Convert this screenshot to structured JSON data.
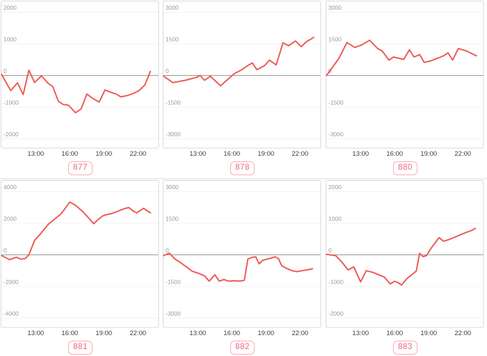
{
  "page": {
    "background": "#ffffff"
  },
  "colors": {
    "line": "#ee5a55",
    "zero_line": "#999999",
    "grid": "#f3f3f3",
    "chart_border": "#d9d9d9",
    "y_tick_text": "#9a9a9a",
    "x_tick_text": "#3c3c3c",
    "badge_border": "#fbaab9",
    "badge_text": "#f2607c",
    "row_divider": "#ededed"
  },
  "x_axis": {
    "tick_hours": [
      13,
      16,
      19,
      22
    ],
    "tick_labels": [
      "13:00",
      "16:00",
      "19:00",
      "22:00"
    ]
  },
  "chart_data": [
    {
      "type": "line",
      "label": "877",
      "xlabel": "",
      "ylabel": "",
      "grid": true,
      "ylim": [
        -2000,
        2000
      ],
      "yticks": [
        2000,
        1000,
        0,
        -1000,
        -2000
      ],
      "x": [
        10.0,
        10.8,
        11.4,
        11.9,
        12.4,
        12.9,
        13.5,
        14.1,
        14.5,
        15.0,
        15.4,
        15.9,
        16.5,
        17.0,
        17.5,
        18.1,
        18.6,
        19.1,
        19.6,
        20.1,
        20.5,
        21.1,
        21.6,
        22.1,
        22.6,
        23.1
      ],
      "y": [
        30,
        -480,
        -235,
        -605,
        165,
        -225,
        -10,
        -250,
        -350,
        -820,
        -915,
        -945,
        -1180,
        -1060,
        -590,
        -745,
        -840,
        -460,
        -530,
        -590,
        -680,
        -630,
        -570,
        -480,
        -305,
        130
      ]
    },
    {
      "type": "line",
      "label": "878",
      "xlabel": "",
      "ylabel": "",
      "grid": true,
      "ylim": [
        -3000,
        3000
      ],
      "yticks": [
        3000,
        1500,
        0,
        -1500,
        -3000
      ],
      "x": [
        10.0,
        10.8,
        11.9,
        12.9,
        13.2,
        13.6,
        14.1,
        15.0,
        15.6,
        16.2,
        16.8,
        17.5,
        17.8,
        18.2,
        18.9,
        19.3,
        19.9,
        20.5,
        21.0,
        21.6,
        22.1,
        22.6,
        22.9,
        23.2
      ],
      "y": [
        -35,
        -340,
        -230,
        -90,
        0,
        -230,
        -35,
        -490,
        -205,
        80,
        250,
        500,
        590,
        275,
        475,
        730,
        500,
        1545,
        1410,
        1635,
        1365,
        1615,
        1705,
        1805
      ]
    },
    {
      "type": "line",
      "label": "880",
      "xlabel": "",
      "ylabel": "",
      "grid": true,
      "ylim": [
        -3000,
        3000
      ],
      "yticks": [
        3000,
        1500,
        0,
        -1500,
        -3000
      ],
      "x": [
        10.0,
        10.5,
        11.1,
        11.8,
        12.5,
        13.1,
        13.8,
        14.5,
        14.9,
        15.5,
        15.9,
        16.3,
        16.8,
        17.3,
        17.7,
        18.2,
        18.6,
        19.1,
        19.5,
        19.9,
        20.3,
        20.7,
        21.1,
        21.6,
        22.0,
        22.4,
        23.2
      ],
      "y": [
        0,
        365,
        820,
        1560,
        1330,
        1445,
        1670,
        1275,
        1160,
        730,
        875,
        820,
        760,
        1215,
        875,
        990,
        615,
        680,
        760,
        840,
        930,
        1070,
        730,
        1275,
        1215,
        1140,
        930
      ]
    },
    {
      "type": "line",
      "label": "881",
      "xlabel": "",
      "ylabel": "",
      "grid": true,
      "ylim": [
        -4000,
        4000
      ],
      "yticks": [
        4000,
        2000,
        0,
        -2000,
        -4000
      ],
      "x": [
        10.0,
        10.7,
        11.3,
        11.7,
        12.1,
        12.4,
        12.9,
        13.5,
        14.1,
        14.7,
        15.2,
        15.6,
        16.0,
        16.5,
        17.1,
        17.7,
        18.1,
        18.5,
        18.9,
        19.2,
        19.7,
        20.1,
        20.5,
        20.9,
        21.2,
        21.6,
        21.9,
        22.5,
        22.8,
        23.1
      ],
      "y": [
        -45,
        -305,
        -150,
        -275,
        -225,
        0,
        910,
        1395,
        1925,
        2275,
        2575,
        2940,
        3335,
        3140,
        2760,
        2300,
        1970,
        2230,
        2455,
        2530,
        2610,
        2715,
        2835,
        2940,
        2990,
        2760,
        2655,
        2940,
        2790,
        2655
      ]
    },
    {
      "type": "line",
      "label": "882",
      "xlabel": "",
      "ylabel": "",
      "grid": true,
      "ylim": [
        -3000,
        3000
      ],
      "yticks": [
        3000,
        1500,
        0,
        -1500,
        -3000
      ],
      "x": [
        10.0,
        10.5,
        11.0,
        11.5,
        12.0,
        12.5,
        13.1,
        13.6,
        14.0,
        14.5,
        14.9,
        15.3,
        15.7,
        16.2,
        16.7,
        17.1,
        17.4,
        17.8,
        18.1,
        18.4,
        18.7,
        19.1,
        19.5,
        19.8,
        20.1,
        20.4,
        20.8,
        21.3,
        21.7,
        22.2,
        22.7,
        23.1
      ],
      "y": [
        -35,
        80,
        -205,
        -375,
        -570,
        -775,
        -885,
        -1000,
        -1250,
        -945,
        -1250,
        -1170,
        -1250,
        -1230,
        -1250,
        -1205,
        -205,
        -115,
        -90,
        -430,
        -260,
        -205,
        -150,
        -90,
        -180,
        -525,
        -635,
        -750,
        -795,
        -750,
        -705,
        -660
      ]
    },
    {
      "type": "line",
      "label": "883",
      "xlabel": "",
      "ylabel": "",
      "grid": true,
      "ylim": [
        -2000,
        2000
      ],
      "yticks": [
        2000,
        1000,
        0,
        -1000,
        -2000
      ],
      "x": [
        10.0,
        10.8,
        11.4,
        11.9,
        12.4,
        13.0,
        13.5,
        14.1,
        14.6,
        15.1,
        15.6,
        16.0,
        16.3,
        16.6,
        17.1,
        17.5,
        17.9,
        18.2,
        18.5,
        18.8,
        19.2,
        19.6,
        19.9,
        20.3,
        20.8,
        21.3,
        21.8,
        22.3,
        22.7,
        23.1
      ],
      "y": [
        15,
        -25,
        -250,
        -480,
        -380,
        -855,
        -500,
        -555,
        -630,
        -705,
        -920,
        -835,
        -880,
        -955,
        -745,
        -630,
        -515,
        50,
        -60,
        -25,
        205,
        395,
        545,
        430,
        485,
        560,
        635,
        710,
        760,
        835
      ]
    }
  ]
}
